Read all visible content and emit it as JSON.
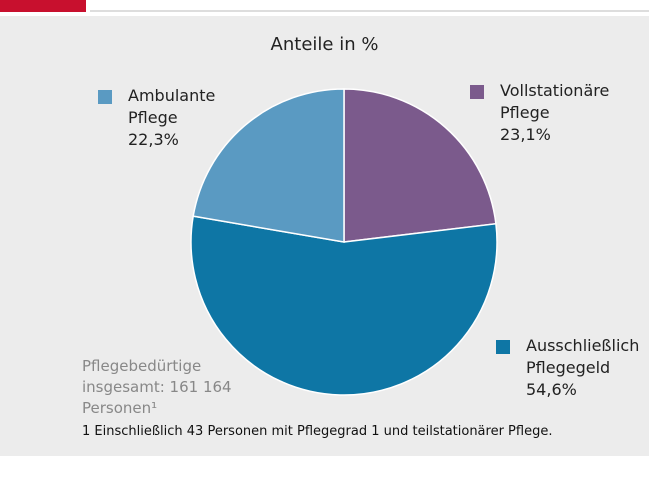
{
  "chart_data": {
    "type": "pie",
    "title": "Anteile in %",
    "categories": [
      "Vollstationäre Pflege",
      "Ausschließlich Pflegegeld",
      "Ambulante Pflege"
    ],
    "values": [
      23.1,
      54.6,
      22.3
    ],
    "value_labels": [
      "23,1%",
      "54,6%",
      "22,3%"
    ],
    "colors": [
      "#7b5a8c",
      "#0e76a5",
      "#5a9ac2"
    ],
    "note": "Pflegebedürtige insgesamt: 161 164 Personen¹",
    "footnote": "1 Einschließlich 43 Personen mit Pflegegrad 1 und teilstationärer Pflege."
  }
}
